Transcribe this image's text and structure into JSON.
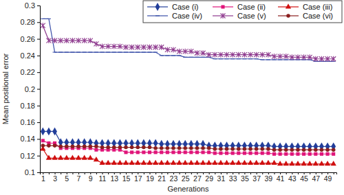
{
  "chart_data": {
    "type": "line",
    "x_label": "Generations",
    "y_label": "Mean positional error",
    "categories": [
      1,
      null,
      3,
      null,
      5,
      null,
      7,
      null,
      9,
      null,
      11,
      null,
      13,
      null,
      15,
      null,
      17,
      null,
      19,
      null,
      21,
      null,
      23,
      null,
      25,
      null,
      27,
      null,
      29,
      null,
      31,
      null,
      33,
      null,
      35,
      null,
      37,
      null,
      39,
      null,
      41,
      null,
      43,
      null,
      45,
      null,
      47,
      null,
      49,
      null
    ],
    "ylim": [
      0.1,
      0.3
    ],
    "yticks": [
      0.1,
      0.12,
      0.14,
      0.16,
      0.18,
      0.2,
      0.22,
      0.24,
      0.26,
      0.28,
      0.3
    ],
    "legend": "upper right",
    "series": [
      {
        "name": "Case (i)",
        "color": "#223e9a",
        "marker": "diamond",
        "values": [
          0.149,
          0.149,
          0.149,
          0.136,
          0.136,
          0.136,
          0.136,
          0.136,
          0.136,
          0.135,
          0.135,
          0.135,
          0.135,
          0.135,
          0.135,
          0.135,
          0.135,
          0.135,
          0.135,
          0.135,
          0.134,
          0.134,
          0.134,
          0.134,
          0.134,
          0.134,
          0.134,
          0.134,
          0.132,
          0.132,
          0.132,
          0.132,
          0.132,
          0.132,
          0.132,
          0.132,
          0.132,
          0.132,
          0.132,
          0.131,
          0.131,
          0.131,
          0.131,
          0.131,
          0.131,
          0.131,
          0.131,
          0.131,
          0.131,
          0.131
        ]
      },
      {
        "name": "Case (ii)",
        "color": "#e0157a",
        "marker": "square",
        "values": [
          0.138,
          0.135,
          0.135,
          0.129,
          0.129,
          0.129,
          0.129,
          0.129,
          0.129,
          0.127,
          0.127,
          0.127,
          0.127,
          0.127,
          0.124,
          0.124,
          0.124,
          0.124,
          0.124,
          0.124,
          0.124,
          0.124,
          0.124,
          0.124,
          0.124,
          0.124,
          0.124,
          0.124,
          0.124,
          0.123,
          0.123,
          0.123,
          0.123,
          0.123,
          0.123,
          0.123,
          0.123,
          0.123,
          0.123,
          0.122,
          0.122,
          0.122,
          0.122,
          0.122,
          0.122,
          0.122,
          0.122,
          0.122,
          0.122,
          0.122
        ]
      },
      {
        "name": "Case (iii)",
        "color": "#d01010",
        "marker": "triangle",
        "values": [
          0.128,
          0.117,
          0.117,
          0.117,
          0.117,
          0.117,
          0.117,
          0.117,
          0.117,
          0.115,
          0.111,
          0.111,
          0.111,
          0.111,
          0.111,
          0.111,
          0.111,
          0.111,
          0.111,
          0.111,
          0.111,
          0.111,
          0.111,
          0.111,
          0.111,
          0.111,
          0.111,
          0.111,
          0.111,
          0.111,
          0.111,
          0.111,
          0.111,
          0.111,
          0.111,
          0.111,
          0.111,
          0.111,
          0.111,
          0.111,
          0.11,
          0.11,
          0.11,
          0.11,
          0.11,
          0.11,
          0.11,
          0.11,
          0.11,
          0.11
        ]
      },
      {
        "name": "Case (iv)",
        "color": "#3a4fa8",
        "marker": "dash",
        "values": [
          0.284,
          0.284,
          0.244,
          0.244,
          0.244,
          0.244,
          0.244,
          0.244,
          0.244,
          0.244,
          0.244,
          0.244,
          0.244,
          0.244,
          0.244,
          0.244,
          0.244,
          0.244,
          0.244,
          0.244,
          0.24,
          0.24,
          0.24,
          0.24,
          0.238,
          0.238,
          0.238,
          0.238,
          0.238,
          0.236,
          0.236,
          0.236,
          0.236,
          0.236,
          0.236,
          0.236,
          0.236,
          0.235,
          0.235,
          0.235,
          0.235,
          0.235,
          0.235,
          0.235,
          0.235,
          0.235,
          0.233,
          0.233,
          0.233,
          0.233
        ]
      },
      {
        "name": "Case (v)",
        "color": "#8e3a8e",
        "marker": "asterisk",
        "values": [
          0.276,
          0.258,
          0.258,
          0.258,
          0.258,
          0.258,
          0.258,
          0.258,
          0.258,
          0.254,
          0.251,
          0.251,
          0.251,
          0.251,
          0.25,
          0.25,
          0.25,
          0.25,
          0.25,
          0.25,
          0.25,
          0.247,
          0.247,
          0.245,
          0.245,
          0.245,
          0.243,
          0.243,
          0.241,
          0.241,
          0.241,
          0.241,
          0.241,
          0.241,
          0.241,
          0.241,
          0.241,
          0.241,
          0.241,
          0.239,
          0.239,
          0.239,
          0.238,
          0.238,
          0.238,
          0.238,
          0.236,
          0.236,
          0.236,
          0.236
        ]
      },
      {
        "name": "Case (vi)",
        "color": "#8b1f1f",
        "marker": "circle",
        "values": [
          0.132,
          0.132,
          0.132,
          0.131,
          0.131,
          0.131,
          0.131,
          0.131,
          0.131,
          0.131,
          0.13,
          0.13,
          0.13,
          0.13,
          0.13,
          0.13,
          0.13,
          0.13,
          0.13,
          0.129,
          0.129,
          0.129,
          0.129,
          0.129,
          0.129,
          0.129,
          0.129,
          0.129,
          0.129,
          0.128,
          0.128,
          0.128,
          0.128,
          0.128,
          0.128,
          0.128,
          0.128,
          0.128,
          0.128,
          0.127,
          0.127,
          0.127,
          0.127,
          0.127,
          0.127,
          0.127,
          0.127,
          0.127,
          0.127,
          0.127
        ]
      }
    ]
  }
}
